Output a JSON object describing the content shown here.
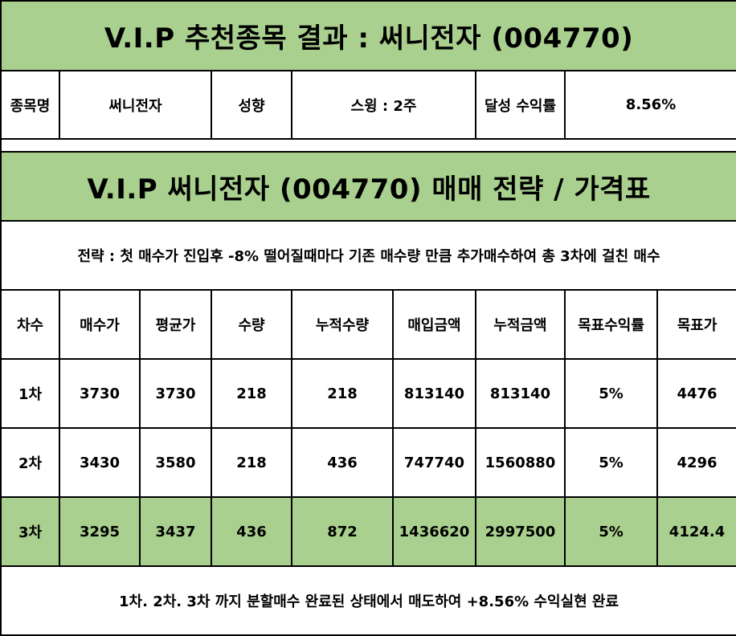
{
  "title": "V.I.P 추천종목 결과 : 써니전자 (004770)",
  "info": {
    "stock_label": "종목명",
    "stock_value": "써니전자",
    "style_label": "성향",
    "style_value": "스윙 : 2주",
    "return_label": "달성 수익률",
    "return_value": "8.56%"
  },
  "strategy_title": "V.I.P 써니전자 (004770) 매매 전략 / 가격표",
  "strategy_note": "전략 : 첫 매수가 진입후 -8% 떨어질때마다 기존 매수량 만큼 추가매수하여 총 3차에 걸친 매수",
  "table": {
    "headers": [
      "차수",
      "매수가",
      "평균가",
      "수량",
      "누적수량",
      "매입금액",
      "누적금액",
      "목표수익률",
      "목표가"
    ],
    "rows": [
      [
        "1차",
        "3730",
        "3730",
        "218",
        "218",
        "813140",
        "813140",
        "5%",
        "4476"
      ],
      [
        "2차",
        "3430",
        "3580",
        "218",
        "436",
        "747740",
        "1560880",
        "5%",
        "4296"
      ],
      [
        "3차",
        "3295",
        "3437",
        "436",
        "872",
        "1436620",
        "2997500",
        "5%",
        "4124.4"
      ]
    ]
  },
  "result_note": "1차. 2차. 3차 까지 분할매수 완료된 상태에서 매도하여 +8.56% 수익실현 완료",
  "colors": {
    "header_green": "#a9d08e",
    "border": "#000000"
  }
}
